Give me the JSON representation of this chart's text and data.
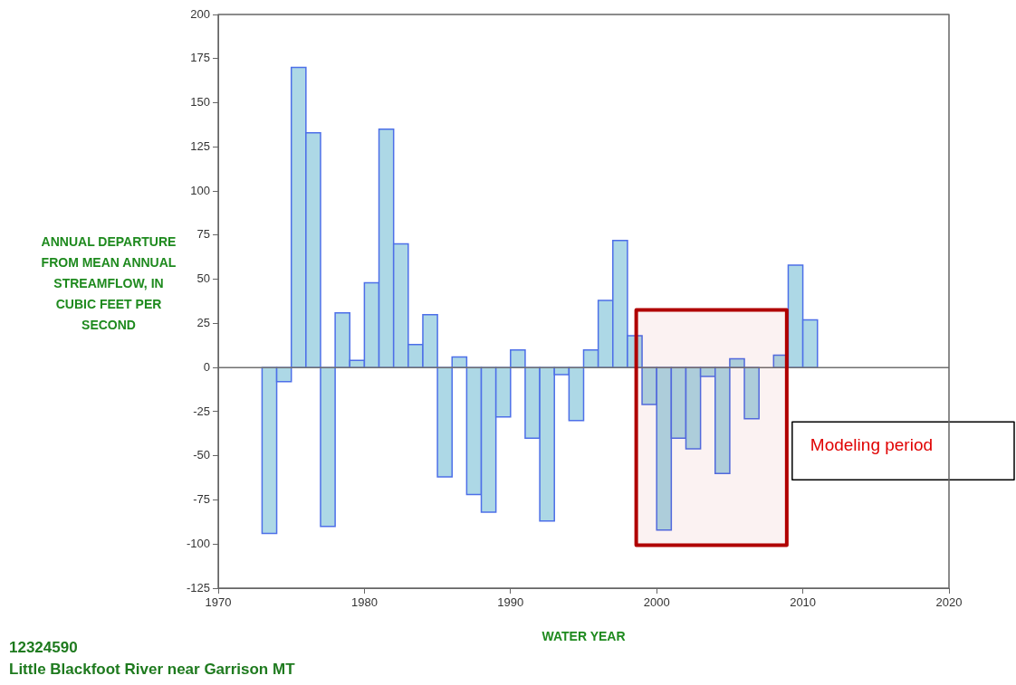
{
  "chart_data": {
    "type": "histogram",
    "xlabel": "WATER YEAR",
    "ylabel": "ANNUAL DEPARTURE FROM MEAN ANNUAL STREAMFLOW, IN CUBIC FEET PER SECOND",
    "annotations": [
      "12324590",
      "Little Blackfoot River near Garrison MT"
    ],
    "bins": [
      1973,
      1974,
      1975,
      1976,
      1977,
      1978,
      1979,
      1980,
      1981,
      1982,
      1983,
      1984,
      1985,
      1986,
      1987,
      1988,
      1989,
      1990,
      1991,
      1992,
      1993,
      1994,
      1995,
      1996,
      1997,
      1998,
      1999,
      2000,
      2001,
      2002,
      2003,
      2004,
      2005,
      2006,
      2007,
      2008,
      2009,
      2010,
      2011
    ],
    "values": [
      -94,
      -8,
      170,
      133,
      -90,
      31,
      4,
      48,
      135,
      70,
      13,
      30,
      -62,
      6,
      -72,
      -82,
      -28,
      10,
      -40,
      -87,
      -4,
      -30,
      10,
      38,
      72,
      18,
      -21,
      -92,
      -40,
      -46,
      -5,
      -60,
      5,
      -29,
      0,
      7,
      58,
      27
    ],
    "color": "#add8e6",
    "xlim": [
      1970,
      2020
    ],
    "xticks": [
      1970,
      1980,
      1990,
      2000,
      2010,
      2020
    ],
    "ylim": [
      -125,
      200
    ],
    "yticks": [
      -125,
      -100,
      -75,
      -50,
      -25,
      0,
      25,
      50,
      75,
      100,
      125,
      150,
      175,
      200
    ],
    "ref_lines": [
      {
        "axis": "y",
        "value": 0,
        "color": "#707070"
      }
    ],
    "bands": [
      {
        "axis": "x",
        "from": 1998.6,
        "to": 2008.9,
        "label": "Modeling period",
        "color": "#b00000"
      }
    ],
    "legend": false
  }
}
